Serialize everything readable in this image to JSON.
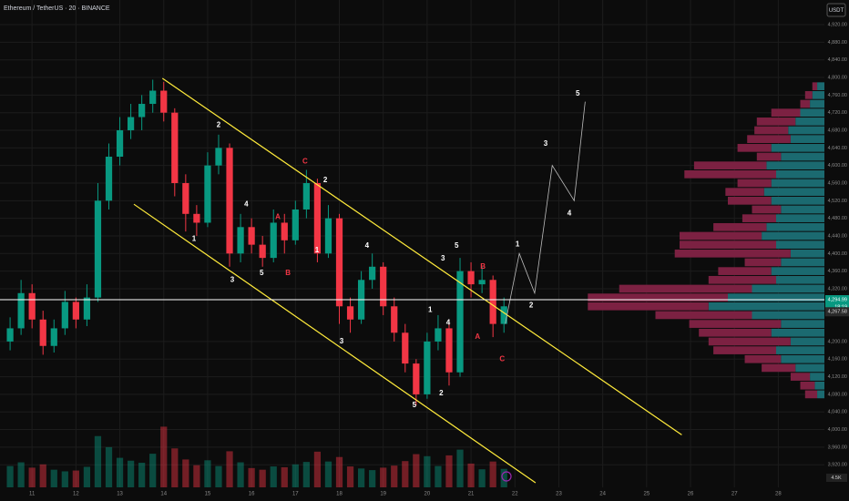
{
  "chart_data": {
    "type": "candlestick",
    "title": "Ethereum / TetherUS · 20 · BINANCE",
    "currency": "USDT",
    "x": [
      10.5,
      10.75,
      11,
      11.25,
      11.5,
      11.75,
      12,
      12.25,
      12.5,
      12.75,
      13,
      13.25,
      13.5,
      13.75,
      14,
      14.25,
      14.5,
      14.75,
      15,
      15.25,
      15.5,
      15.75,
      16,
      16.25,
      16.5,
      16.75,
      17,
      17.25,
      17.5,
      17.75,
      18,
      18.25,
      18.5,
      18.75,
      19,
      19.25,
      19.5,
      19.75,
      20,
      20.25,
      20.5,
      20.75,
      21,
      21.25,
      21.5,
      21.75
    ],
    "open": [
      4200,
      4230,
      4310,
      4250,
      4190,
      4230,
      4290,
      4250,
      4300,
      4520,
      4620,
      4680,
      4710,
      4740,
      4770,
      4720,
      4560,
      4490,
      4470,
      4600,
      4640,
      4400,
      4460,
      4420,
      4390,
      4470,
      4430,
      4500,
      4560,
      4400,
      4480,
      4280,
      4250,
      4340,
      4370,
      4280,
      4220,
      4150,
      4080,
      4200,
      4230,
      4130,
      4360,
      4330,
      4340,
      4240
    ],
    "high": [
      4255,
      4340,
      4330,
      4270,
      4250,
      4315,
      4300,
      4330,
      4560,
      4650,
      4710,
      4740,
      4760,
      4795,
      4790,
      4730,
      4580,
      4510,
      4630,
      4670,
      4650,
      4490,
      4480,
      4440,
      4500,
      4490,
      4520,
      4590,
      4570,
      4510,
      4490,
      4300,
      4360,
      4400,
      4380,
      4300,
      4240,
      4160,
      4220,
      4260,
      4250,
      4390,
      4380,
      4370,
      4350,
      4300
    ],
    "low": [
      4180,
      4215,
      4230,
      4170,
      4175,
      4215,
      4230,
      4235,
      4290,
      4500,
      4600,
      4660,
      4680,
      4720,
      4700,
      4530,
      4450,
      4440,
      4460,
      4580,
      4370,
      4380,
      4400,
      4370,
      4380,
      4400,
      4420,
      4480,
      4380,
      4390,
      4240,
      4220,
      4240,
      4320,
      4260,
      4200,
      4130,
      4055,
      4070,
      4180,
      4100,
      4120,
      4300,
      4310,
      4210,
      4220
    ],
    "close": [
      4230,
      4310,
      4250,
      4190,
      4230,
      4290,
      4250,
      4300,
      4520,
      4620,
      4680,
      4710,
      4740,
      4770,
      4720,
      4560,
      4490,
      4470,
      4600,
      4640,
      4400,
      4460,
      4420,
      4390,
      4470,
      4430,
      4500,
      4560,
      4400,
      4480,
      4280,
      4250,
      4340,
      4370,
      4280,
      4220,
      4150,
      4080,
      4200,
      4230,
      4130,
      4360,
      4330,
      4340,
      4240,
      4280
    ],
    "volume": [
      5200,
      6100,
      4800,
      5600,
      4300,
      3900,
      4100,
      5000,
      12500,
      9800,
      7200,
      6500,
      6000,
      8200,
      14800,
      9500,
      6800,
      5400,
      6600,
      5200,
      8800,
      6100,
      4700,
      4300,
      5100,
      4900,
      5600,
      6200,
      8700,
      6300,
      7400,
      5100,
      4600,
      4200,
      4800,
      5300,
      6400,
      8100,
      7600,
      5200,
      7800,
      9200,
      5800,
      4400,
      6300,
      4500
    ],
    "up_color": "#089981",
    "down_color": "#f23645",
    "xlim": [
      10.27,
      29.05
    ],
    "ylim": [
      3848,
      4976
    ],
    "vlim": [
      0,
      20000
    ],
    "volume_label": "4.5K",
    "grid": true,
    "xticks": [
      11,
      12,
      13,
      14,
      15,
      16,
      17,
      18,
      19,
      20,
      21,
      22,
      23,
      24,
      25,
      26,
      27,
      28
    ],
    "yticks": [
      {
        "value": 3920,
        "label": "3,920.00"
      },
      {
        "value": 3960,
        "label": "3,960.00"
      },
      {
        "value": 4000,
        "label": "4,000.00"
      },
      {
        "value": 4040,
        "label": "4,040.00"
      },
      {
        "value": 4080,
        "label": "4,080.00"
      },
      {
        "value": 4120,
        "label": "4,120.00"
      },
      {
        "value": 4160,
        "label": "4,160.00"
      },
      {
        "value": 4200,
        "label": "4,200.00"
      },
      {
        "value": 4320,
        "label": "4,320.00"
      },
      {
        "value": 4360,
        "label": "4,360.00"
      },
      {
        "value": 4400,
        "label": "4,400.00"
      },
      {
        "value": 4440,
        "label": "4,440.00"
      },
      {
        "value": 4480,
        "label": "4,480.00"
      },
      {
        "value": 4520,
        "label": "4,520.00"
      },
      {
        "value": 4560,
        "label": "4,560.00"
      },
      {
        "value": 4600,
        "label": "4,600.00"
      },
      {
        "value": 4640,
        "label": "4,640.00"
      },
      {
        "value": 4680,
        "label": "4,680.00"
      },
      {
        "value": 4720,
        "label": "4,720.00"
      },
      {
        "value": 4760,
        "label": "4,760.00"
      },
      {
        "value": 4800,
        "label": "4,800.00"
      },
      {
        "value": 4840,
        "label": "4,840.00"
      },
      {
        "value": 4880,
        "label": "4,880.00"
      },
      {
        "value": 4920,
        "label": "4,920.00"
      }
    ],
    "price_line": {
      "value": 4294.99,
      "label": "4,294.99",
      "color": "#ffffff"
    },
    "countdown": "18:19",
    "price_tags": [
      {
        "value": 4267.58,
        "label": "4,267.58"
      }
    ],
    "trend_lines": [
      {
        "x": [
          13.97,
          25.8
        ],
        "y": [
          4798,
          3988
        ],
        "color": "#ffeb3b"
      },
      {
        "x": [
          13.32,
          22.47
        ],
        "y": [
          4512,
          3879
        ],
        "color": "#ffeb3b"
      }
    ],
    "projection": {
      "x": [
        21.78,
        22.1,
        22.45,
        22.85,
        23.35,
        23.6
      ],
      "y": [
        4240,
        4400,
        4310,
        4600,
        4520,
        4745
      ],
      "color": "#bdbdbd"
    },
    "wave_labels": [
      {
        "text": "1",
        "x": 14.69,
        "y": 4433,
        "color": "#ffffff"
      },
      {
        "text": "2",
        "x": 15.25,
        "y": 4692,
        "color": "#ffffff"
      },
      {
        "text": "3",
        "x": 15.56,
        "y": 4340,
        "color": "#ffffff"
      },
      {
        "text": "4",
        "x": 15.88,
        "y": 4512,
        "color": "#ffffff"
      },
      {
        "text": "5",
        "x": 16.23,
        "y": 4355,
        "color": "#ffffff"
      },
      {
        "text": "A",
        "x": 16.6,
        "y": 4483,
        "color": "#f23645"
      },
      {
        "text": "B",
        "x": 16.83,
        "y": 4355,
        "color": "#f23645"
      },
      {
        "text": "C",
        "x": 17.22,
        "y": 4609,
        "color": "#f23645"
      },
      {
        "text": "2",
        "x": 17.68,
        "y": 4566,
        "color": "#ffffff"
      },
      {
        "text": "1",
        "x": 17.49,
        "y": 4407,
        "color": "#ffffff"
      },
      {
        "text": "3",
        "x": 18.05,
        "y": 4200,
        "color": "#ffffff"
      },
      {
        "text": "4",
        "x": 18.63,
        "y": 4417,
        "color": "#ffffff"
      },
      {
        "text": "5",
        "x": 19.71,
        "y": 4055,
        "color": "#ffffff"
      },
      {
        "text": "1",
        "x": 20.07,
        "y": 4272,
        "color": "#ffffff"
      },
      {
        "text": "2",
        "x": 20.32,
        "y": 4082,
        "color": "#ffffff"
      },
      {
        "text": "3",
        "x": 20.36,
        "y": 4388,
        "color": "#ffffff"
      },
      {
        "text": "4",
        "x": 20.48,
        "y": 4243,
        "color": "#ffffff"
      },
      {
        "text": "5",
        "x": 20.67,
        "y": 4417,
        "color": "#ffffff"
      },
      {
        "text": "B",
        "x": 21.27,
        "y": 4370,
        "color": "#f23645"
      },
      {
        "text": "A",
        "x": 21.15,
        "y": 4210,
        "color": "#f23645"
      },
      {
        "text": "C",
        "x": 21.71,
        "y": 4160,
        "color": "#f23645"
      },
      {
        "text": "1",
        "x": 22.06,
        "y": 4421,
        "color": "#ffffff"
      },
      {
        "text": "2",
        "x": 22.37,
        "y": 4282,
        "color": "#ffffff"
      },
      {
        "text": "3",
        "x": 22.7,
        "y": 4649,
        "color": "#ffffff"
      },
      {
        "text": "4",
        "x": 23.24,
        "y": 4491,
        "color": "#ffffff"
      },
      {
        "text": "5",
        "x": 23.43,
        "y": 4763,
        "color": "#ffffff"
      }
    ],
    "profile": {
      "levels": [
        4080,
        4100,
        4120,
        4140,
        4160,
        4180,
        4200,
        4220,
        4240,
        4260,
        4280,
        4300,
        4320,
        4340,
        4360,
        4380,
        4400,
        4420,
        4440,
        4460,
        4480,
        4500,
        4520,
        4540,
        4560,
        4580,
        4600,
        4620,
        4640,
        4660,
        4680,
        4700,
        4720,
        4740,
        4760,
        4780
      ],
      "up": [
        3,
        4,
        6,
        12,
        18,
        20,
        14,
        22,
        18,
        30,
        48,
        40,
        30,
        20,
        22,
        18,
        14,
        20,
        26,
        24,
        20,
        18,
        22,
        25,
        22,
        20,
        24,
        18,
        22,
        14,
        15,
        12,
        10,
        6,
        5,
        3
      ],
      "down": [
        5,
        6,
        8,
        14,
        15,
        26,
        34,
        30,
        38,
        40,
        50,
        58,
        55,
        28,
        22,
        15,
        48,
        40,
        34,
        22,
        14,
        12,
        18,
        16,
        14,
        38,
        30,
        10,
        14,
        18,
        14,
        16,
        12,
        4,
        3,
        2
      ],
      "up_color": "#1b6a70",
      "down_color": "#7c2142",
      "xlim": [
        0,
        100
      ]
    }
  }
}
